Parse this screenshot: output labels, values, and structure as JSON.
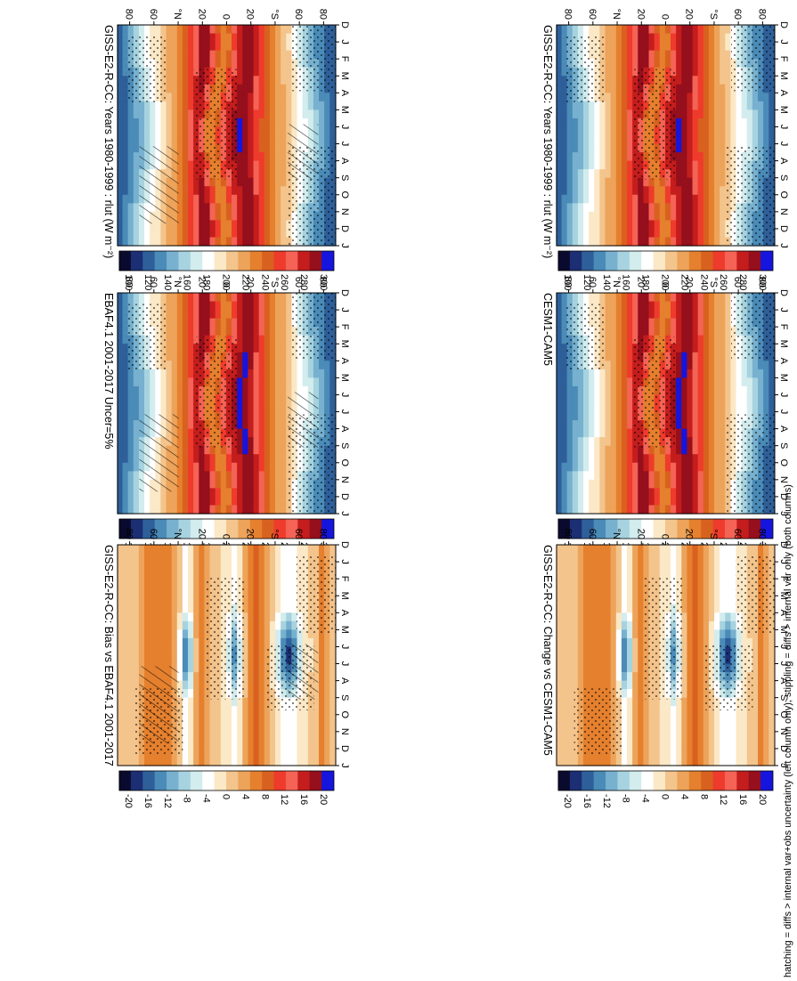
{
  "chart_data": {
    "type": "heatmap",
    "footnote": "hatching = diffs > internal var+obs uncertainty (left column only); stippling = diffs > internal var only (both columns)",
    "months": [
      "D",
      "J",
      "F",
      "M",
      "A",
      "M",
      "J",
      "J",
      "A",
      "S",
      "O",
      "N",
      "D",
      "J"
    ],
    "lat_ticks": [
      "80",
      "60",
      "°N",
      "20",
      "0",
      "20",
      "°S",
      "60",
      "80"
    ],
    "lat_range": [
      -90,
      90
    ],
    "colorbar_abs": {
      "ticks": [
        "300",
        "280",
        "260",
        "240",
        "220",
        "200",
        "180",
        "160",
        "140",
        "120",
        "100"
      ],
      "range": [
        90,
        310
      ]
    },
    "colorbar_diff": {
      "ticks": [
        "20",
        "16",
        "12",
        "8",
        "4",
        "0",
        "-4",
        "-8",
        "-12",
        "-16",
        "-20"
      ],
      "range": [
        -22,
        22
      ]
    },
    "panels": [
      {
        "id": "a",
        "title": "GISS-E2-R-CC: Years 1980-1999 : rlut (W m⁻²)",
        "kind": "abs",
        "stipple": true,
        "hatch": true
      },
      {
        "id": "b",
        "title": "EBAF4.1 2001-2017 Uncer=5%",
        "kind": "abs",
        "stipple": true,
        "hatch": true
      },
      {
        "id": "c",
        "title": "GISS-E2-R-CC: Bias vs EBAF4.1 2001-2017",
        "kind": "diff",
        "stipple": true,
        "hatch": true
      },
      {
        "id": "d",
        "title": "GISS-E2-R-CC: Years 1980-1999 : rlut (W m⁻²)",
        "kind": "abs",
        "stipple": true,
        "hatch": false
      },
      {
        "id": "e",
        "title": "CESM1-CAM5",
        "kind": "abs",
        "stipple": true,
        "hatch": false
      },
      {
        "id": "f",
        "title": "GISS-E2-R-CC: Change vs CESM1-CAM5",
        "kind": "diff",
        "stipple": true,
        "hatch": false
      }
    ]
  }
}
